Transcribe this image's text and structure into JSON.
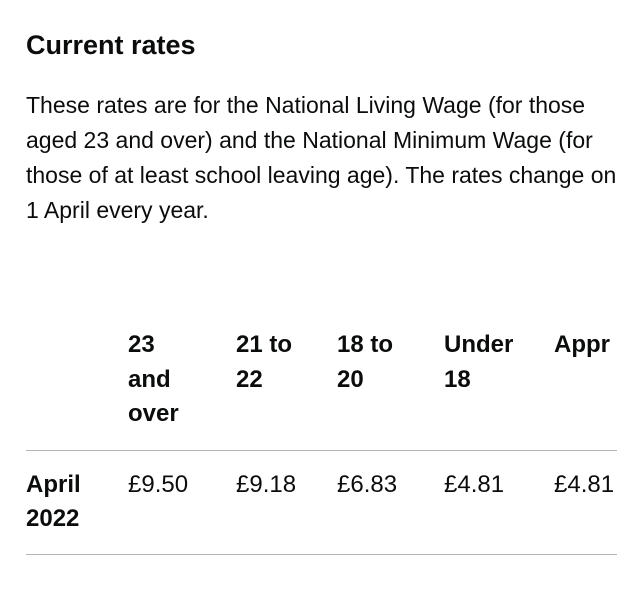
{
  "heading": "Current rates",
  "paragraph": "These rates are for the National Living Wage (for those aged 23 and over) and the National Minimum Wage (for those of at least school leaving age). The rates change on 1 April every year.",
  "table": {
    "headers": [
      "23 and over",
      "21 to 22",
      "18 to 20",
      "Under 18",
      "Appr"
    ],
    "rows": [
      [
        "April 2022",
        "£9.50",
        "£9.18",
        "£6.83",
        "£4.81",
        "£4.81"
      ]
    ]
  }
}
